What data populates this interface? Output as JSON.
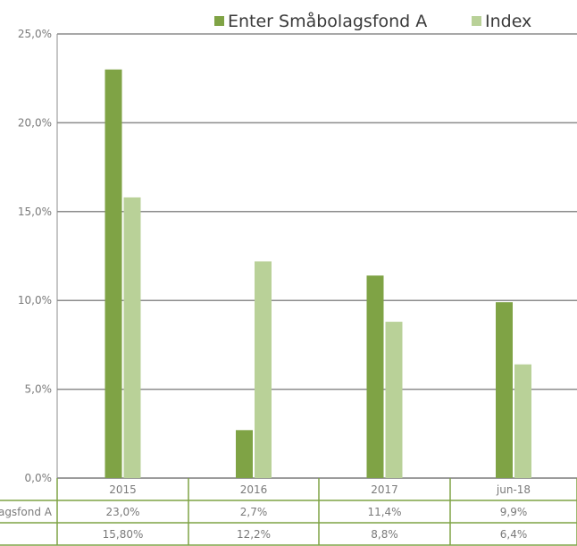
{
  "chart_data": {
    "type": "bar",
    "categories": [
      "2015",
      "2016",
      "2017",
      "jun-18"
    ],
    "series": [
      {
        "name": "Enter Småbolagsfond A",
        "values": [
          23.0,
          2.7,
          11.4,
          9.9
        ],
        "color": "#7fa345"
      },
      {
        "name": "Index",
        "values": [
          15.8,
          12.2,
          8.8,
          6.4
        ],
        "color": "#b9d198"
      }
    ],
    "ylim": [
      0,
      25
    ],
    "y_ticks": [
      "0,0%",
      "5,0%",
      "10,0%",
      "15,0%",
      "20,0%",
      "25,0%"
    ],
    "legend_position": "top-right",
    "grid": true,
    "data_table": {
      "rows": [
        {
          "label": "Enter Småbolagsfond A",
          "cells": [
            "23,0%",
            "2,7%",
            "11,4%",
            "9,9%"
          ]
        },
        {
          "label": "",
          "cells": [
            "15,80%",
            "12,2%",
            "8,8%",
            "6,4%"
          ]
        }
      ]
    }
  }
}
